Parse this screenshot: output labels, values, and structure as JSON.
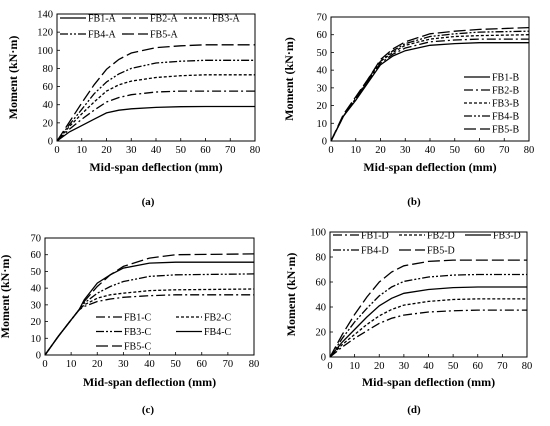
{
  "chart_data": [
    {
      "type": "line",
      "panel_label": "(a)",
      "xlabel": "Mid-span deflection (mm)",
      "ylabel": "Moment (kN·m)",
      "xlim": [
        0,
        80
      ],
      "ylim": [
        0,
        140
      ],
      "xticks": [
        "0",
        "10",
        "20",
        "30",
        "40",
        "50",
        "60",
        "70",
        "80"
      ],
      "yticks": [
        "0",
        "20",
        "40",
        "60",
        "80",
        "100",
        "120",
        "140"
      ],
      "legend": "top, 3 columns",
      "legend_columns": 3,
      "series": [
        {
          "name": "FB1-A",
          "dash": "solid",
          "points": [
            [
              0,
              0
            ],
            [
              5,
              10
            ],
            [
              10,
              17
            ],
            [
              15,
              24
            ],
            [
              20,
              31
            ],
            [
              25,
              34
            ],
            [
              30,
              35.5
            ],
            [
              40,
              37
            ],
            [
              50,
              37.8
            ],
            [
              60,
              38
            ],
            [
              80,
              38
            ]
          ]
        },
        {
          "name": "FB2-A",
          "dash": "dashdot",
          "points": [
            [
              0,
              0
            ],
            [
              5,
              13
            ],
            [
              10,
              24
            ],
            [
              15,
              34
            ],
            [
              20,
              43
            ],
            [
              25,
              48
            ],
            [
              30,
              51
            ],
            [
              40,
              54
            ],
            [
              50,
              55
            ],
            [
              60,
              55
            ],
            [
              80,
              55
            ]
          ]
        },
        {
          "name": "FB3-A",
          "dash": "dot",
          "points": [
            [
              0,
              0
            ],
            [
              5,
              16
            ],
            [
              10,
              30
            ],
            [
              15,
              43
            ],
            [
              20,
              55
            ],
            [
              25,
              62
            ],
            [
              30,
              66
            ],
            [
              40,
              70
            ],
            [
              50,
              72
            ],
            [
              60,
              73
            ],
            [
              80,
              73
            ]
          ]
        },
        {
          "name": "FB4-A",
          "dash": "dashdotdot",
          "points": [
            [
              0,
              0
            ],
            [
              5,
              18
            ],
            [
              10,
              35
            ],
            [
              15,
              52
            ],
            [
              20,
              65
            ],
            [
              25,
              74
            ],
            [
              30,
              80
            ],
            [
              40,
              86
            ],
            [
              50,
              88
            ],
            [
              60,
              89
            ],
            [
              80,
              89
            ]
          ]
        },
        {
          "name": "FB5-A",
          "dash": "longdash",
          "points": [
            [
              0,
              0
            ],
            [
              5,
              21
            ],
            [
              10,
              42
            ],
            [
              15,
              62
            ],
            [
              20,
              79
            ],
            [
              25,
              90
            ],
            [
              30,
              97
            ],
            [
              40,
              103
            ],
            [
              50,
              105
            ],
            [
              60,
              106
            ],
            [
              80,
              106
            ]
          ]
        }
      ]
    },
    {
      "type": "line",
      "panel_label": "(b)",
      "xlabel": "Mid-span deflection (mm)",
      "ylabel": "Moment (kN·m)",
      "xlim": [
        0,
        80
      ],
      "ylim": [
        0,
        70
      ],
      "xticks": [
        "0",
        "10",
        "20",
        "30",
        "40",
        "50",
        "60",
        "70",
        "80"
      ],
      "yticks": [
        "0",
        "10",
        "20",
        "30",
        "40",
        "50",
        "60",
        "70"
      ],
      "legend": "bottom-right",
      "legend_columns": 1,
      "series": [
        {
          "name": "FB1-B",
          "dash": "solid",
          "points": [
            [
              0,
              0
            ],
            [
              5,
              14
            ],
            [
              10,
              23
            ],
            [
              15,
              33
            ],
            [
              20,
              43
            ],
            [
              25,
              48
            ],
            [
              30,
              51
            ],
            [
              40,
              54
            ],
            [
              50,
              55
            ],
            [
              60,
              55.5
            ],
            [
              80,
              55.5
            ]
          ]
        },
        {
          "name": "FB2-B",
          "dash": "dashdot",
          "points": [
            [
              0,
              0
            ],
            [
              5,
              14
            ],
            [
              10,
              24
            ],
            [
              15,
              34
            ],
            [
              20,
              44
            ],
            [
              25,
              49
            ],
            [
              30,
              52.5
            ],
            [
              40,
              56
            ],
            [
              50,
              57
            ],
            [
              60,
              57.5
            ],
            [
              80,
              57.5
            ]
          ]
        },
        {
          "name": "FB3-B",
          "dash": "dot",
          "points": [
            [
              0,
              0
            ],
            [
              5,
              14
            ],
            [
              10,
              24
            ],
            [
              15,
              34
            ],
            [
              20,
              45
            ],
            [
              25,
              50
            ],
            [
              30,
              54
            ],
            [
              40,
              57.5
            ],
            [
              50,
              59
            ],
            [
              60,
              59.5
            ],
            [
              80,
              60
            ]
          ]
        },
        {
          "name": "FB4-B",
          "dash": "dashdotdot",
          "points": [
            [
              0,
              0
            ],
            [
              5,
              14
            ],
            [
              10,
              24
            ],
            [
              15,
              35
            ],
            [
              20,
              45
            ],
            [
              25,
              51
            ],
            [
              30,
              55
            ],
            [
              40,
              59
            ],
            [
              50,
              60.5
            ],
            [
              60,
              61.5
            ],
            [
              80,
              62
            ]
          ]
        },
        {
          "name": "FB5-B",
          "dash": "longdash",
          "points": [
            [
              0,
              0
            ],
            [
              5,
              15
            ],
            [
              10,
              25
            ],
            [
              15,
              35
            ],
            [
              20,
              46
            ],
            [
              25,
              52
            ],
            [
              30,
              56
            ],
            [
              40,
              60.5
            ],
            [
              50,
              62
            ],
            [
              60,
              63
            ],
            [
              80,
              64
            ]
          ]
        }
      ]
    },
    {
      "type": "line",
      "panel_label": "(c)",
      "xlabel": "Mid-span deflection (mm)",
      "ylabel": "Moment (kN·m)",
      "xlim": [
        0,
        80
      ],
      "ylim": [
        0,
        70
      ],
      "xticks": [
        "0",
        "10",
        "20",
        "30",
        "40",
        "50",
        "60",
        "70",
        "80"
      ],
      "yticks": [
        "0",
        "10",
        "20",
        "30",
        "40",
        "50",
        "60",
        "70"
      ],
      "legend": "bottom-right, 2 columns",
      "legend_columns": 2,
      "series": [
        {
          "name": "FB1-C",
          "dash": "dashdot",
          "points": [
            [
              0,
              0
            ],
            [
              5,
              11
            ],
            [
              10,
              21
            ],
            [
              13,
              27
            ],
            [
              15,
              29
            ],
            [
              20,
              32
            ],
            [
              25,
              33.5
            ],
            [
              30,
              34.5
            ],
            [
              40,
              35.5
            ],
            [
              50,
              36
            ],
            [
              80,
              36
            ]
          ]
        },
        {
          "name": "FB2-C",
          "dash": "dot",
          "points": [
            [
              0,
              0
            ],
            [
              5,
              11
            ],
            [
              10,
              21
            ],
            [
              13,
              27
            ],
            [
              15,
              30
            ],
            [
              20,
              34
            ],
            [
              25,
              36
            ],
            [
              30,
              37
            ],
            [
              40,
              38.5
            ],
            [
              50,
              39
            ],
            [
              80,
              39.5
            ]
          ]
        },
        {
          "name": "FB3-C",
          "dash": "dashdotdot",
          "points": [
            [
              0,
              0
            ],
            [
              5,
              11
            ],
            [
              10,
              21
            ],
            [
              13,
              27
            ],
            [
              15,
              31
            ],
            [
              20,
              37
            ],
            [
              25,
              41
            ],
            [
              30,
              44
            ],
            [
              40,
              47
            ],
            [
              50,
              48
            ],
            [
              80,
              48.5
            ]
          ]
        },
        {
          "name": "FB4-C",
          "dash": "solid",
          "points": [
            [
              0,
              0
            ],
            [
              5,
              11
            ],
            [
              10,
              21
            ],
            [
              13,
              27
            ],
            [
              15,
              33
            ],
            [
              20,
              43
            ],
            [
              25,
              48
            ],
            [
              30,
              52
            ],
            [
              40,
              55
            ],
            [
              50,
              55.5
            ],
            [
              80,
              55.5
            ]
          ]
        },
        {
          "name": "FB5-C",
          "dash": "longdash",
          "points": [
            [
              0,
              0
            ],
            [
              5,
              11
            ],
            [
              10,
              21
            ],
            [
              13,
              27
            ],
            [
              15,
              32
            ],
            [
              20,
              41
            ],
            [
              25,
              48
            ],
            [
              30,
              53
            ],
            [
              40,
              58
            ],
            [
              50,
              60
            ],
            [
              80,
              60.5
            ]
          ]
        }
      ]
    },
    {
      "type": "line",
      "panel_label": "(d)",
      "xlabel": "Mid-span deflection (mm)",
      "ylabel": "Moment (kN·m)",
      "xlim": [
        0,
        80
      ],
      "ylim": [
        0,
        100
      ],
      "xticks": [
        "0",
        "10",
        "20",
        "30",
        "40",
        "50",
        "60",
        "70",
        "80"
      ],
      "yticks": [
        "0",
        "20",
        "40",
        "60",
        "80",
        "100"
      ],
      "legend": "top, 3 columns",
      "legend_columns": 3,
      "series": [
        {
          "name": "FB1-D",
          "dash": "dashdot",
          "points": [
            [
              0,
              0
            ],
            [
              5,
              8
            ],
            [
              10,
              15
            ],
            [
              15,
              21
            ],
            [
              20,
              27
            ],
            [
              25,
              31
            ],
            [
              30,
              33.5
            ],
            [
              40,
              36
            ],
            [
              50,
              37
            ],
            [
              60,
              37.5
            ],
            [
              80,
              37.5
            ]
          ]
        },
        {
          "name": "FB2-D",
          "dash": "dot",
          "points": [
            [
              0,
              0
            ],
            [
              5,
              10
            ],
            [
              10,
              18
            ],
            [
              15,
              26
            ],
            [
              20,
              33
            ],
            [
              25,
              38
            ],
            [
              30,
              41.5
            ],
            [
              40,
              44.5
            ],
            [
              50,
              46
            ],
            [
              60,
              46.5
            ],
            [
              80,
              46.5
            ]
          ]
        },
        {
          "name": "FB3-D",
          "dash": "solid",
          "points": [
            [
              0,
              0
            ],
            [
              5,
              12
            ],
            [
              10,
              22
            ],
            [
              15,
              32
            ],
            [
              20,
              41
            ],
            [
              25,
              47
            ],
            [
              30,
              51
            ],
            [
              40,
              54
            ],
            [
              50,
              55.5
            ],
            [
              60,
              56
            ],
            [
              80,
              56
            ]
          ]
        },
        {
          "name": "FB4-D",
          "dash": "dashdotdot",
          "points": [
            [
              0,
              0
            ],
            [
              5,
              15
            ],
            [
              10,
              28
            ],
            [
              15,
              39
            ],
            [
              20,
              49
            ],
            [
              25,
              56
            ],
            [
              30,
              60.5
            ],
            [
              40,
              64
            ],
            [
              50,
              65.5
            ],
            [
              60,
              66
            ],
            [
              80,
              66
            ]
          ]
        },
        {
          "name": "FB5-D",
          "dash": "longdash",
          "points": [
            [
              0,
              0
            ],
            [
              5,
              18
            ],
            [
              10,
              34
            ],
            [
              15,
              48
            ],
            [
              20,
              60
            ],
            [
              25,
              68
            ],
            [
              30,
              73
            ],
            [
              40,
              76.5
            ],
            [
              50,
              77.5
            ],
            [
              60,
              77.5
            ],
            [
              80,
              77.5
            ]
          ]
        }
      ]
    }
  ]
}
